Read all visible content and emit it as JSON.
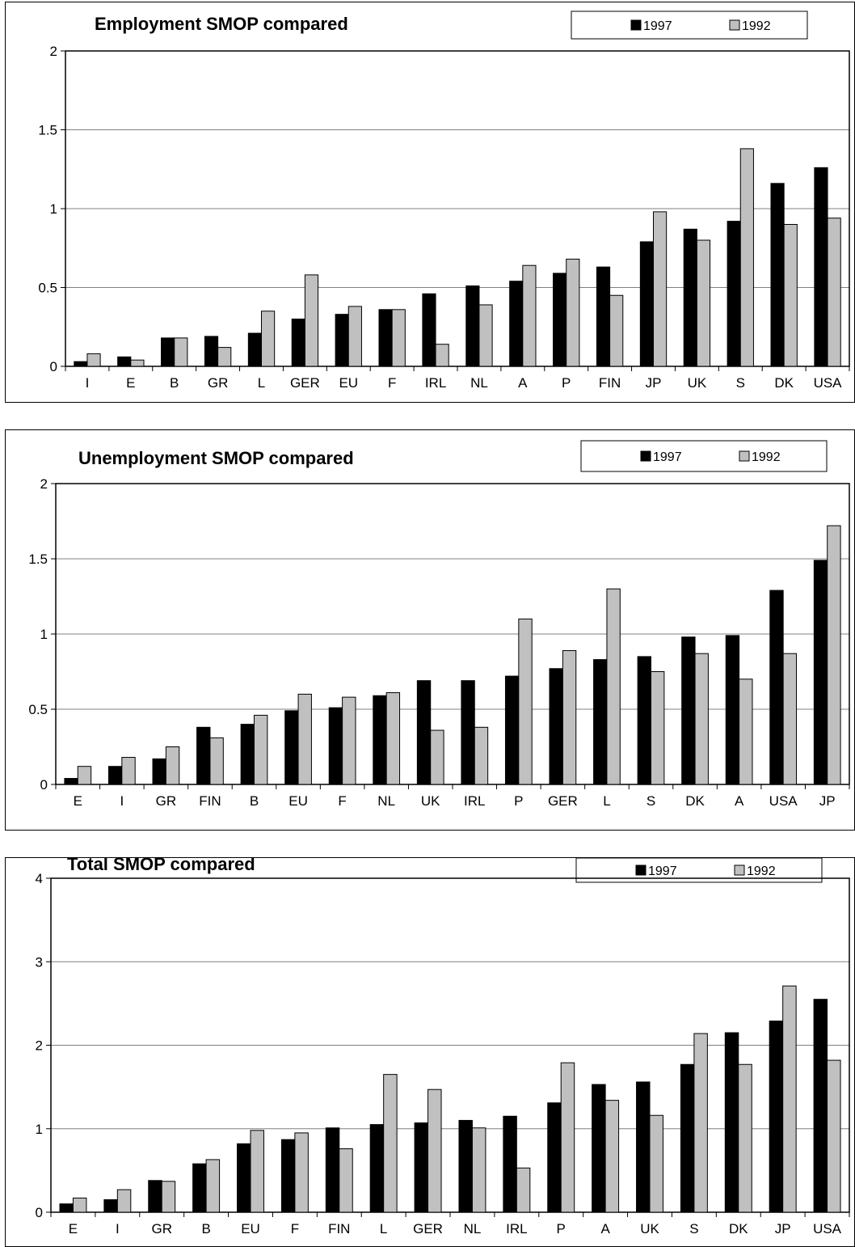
{
  "colors": {
    "series_1997": "#000000",
    "series_1992": "#c0c0c0",
    "gridline": "#808080"
  },
  "chart_data": [
    {
      "type": "bar",
      "title": "Employment SMOP compared",
      "xlabel": "",
      "ylabel": "",
      "ylim": [
        0,
        2
      ],
      "yticks": [
        "0",
        "0.5",
        "1",
        "1.5",
        "2"
      ],
      "grid": true,
      "legend_position": "top-right",
      "categories": [
        "I",
        "E",
        "B",
        "GR",
        "L",
        "GER",
        "EU",
        "F",
        "IRL",
        "NL",
        "A",
        "P",
        "FIN",
        "JP",
        "UK",
        "S",
        "DK",
        "USA"
      ],
      "series": [
        {
          "name": "1997",
          "values": [
            0.03,
            0.06,
            0.18,
            0.19,
            0.21,
            0.3,
            0.33,
            0.36,
            0.46,
            0.51,
            0.54,
            0.59,
            0.63,
            0.79,
            0.87,
            0.92,
            1.16,
            1.26
          ]
        },
        {
          "name": "1992",
          "values": [
            0.08,
            0.04,
            0.18,
            0.12,
            0.35,
            0.58,
            0.38,
            0.36,
            0.14,
            0.39,
            0.64,
            0.68,
            0.45,
            0.98,
            0.8,
            1.38,
            0.9,
            0.94
          ]
        }
      ]
    },
    {
      "type": "bar",
      "title": "Unemployment SMOP compared",
      "xlabel": "",
      "ylabel": "",
      "ylim": [
        0,
        2
      ],
      "yticks": [
        "0",
        "0.5",
        "1",
        "1.5",
        "2"
      ],
      "grid": true,
      "legend_position": "top-right",
      "categories": [
        "E",
        "I",
        "GR",
        "FIN",
        "B",
        "EU",
        "F",
        "NL",
        "UK",
        "IRL",
        "P",
        "GER",
        "L",
        "S",
        "DK",
        "A",
        "USA",
        "JP"
      ],
      "series": [
        {
          "name": "1997",
          "values": [
            0.04,
            0.12,
            0.17,
            0.38,
            0.4,
            0.49,
            0.51,
            0.59,
            0.69,
            0.69,
            0.72,
            0.77,
            0.83,
            0.85,
            0.98,
            0.99,
            1.29,
            1.49
          ]
        },
        {
          "name": "1992",
          "values": [
            0.12,
            0.18,
            0.25,
            0.31,
            0.46,
            0.6,
            0.58,
            0.61,
            0.36,
            0.38,
            1.1,
            0.89,
            1.3,
            0.75,
            0.87,
            0.7,
            0.87,
            1.72
          ]
        }
      ]
    },
    {
      "type": "bar",
      "title": "Total SMOP compared",
      "xlabel": "",
      "ylabel": "",
      "ylim": [
        0,
        4
      ],
      "yticks": [
        "0",
        "1",
        "2",
        "3",
        "4"
      ],
      "grid": true,
      "legend_position": "top-right",
      "categories": [
        "E",
        "I",
        "GR",
        "B",
        "EU",
        "F",
        "FIN",
        "L",
        "GER",
        "NL",
        "IRL",
        "P",
        "A",
        "UK",
        "S",
        "DK",
        "JP",
        "USA"
      ],
      "series": [
        {
          "name": "1997",
          "values": [
            0.1,
            0.15,
            0.38,
            0.58,
            0.82,
            0.87,
            1.01,
            1.05,
            1.07,
            1.1,
            1.15,
            1.31,
            1.53,
            1.56,
            1.77,
            2.15,
            2.29,
            2.55
          ]
        },
        {
          "name": "1992",
          "values": [
            0.17,
            0.27,
            0.37,
            0.63,
            0.98,
            0.95,
            0.76,
            1.65,
            1.47,
            1.01,
            0.53,
            1.79,
            1.34,
            1.16,
            2.14,
            1.77,
            2.71,
            1.82
          ]
        }
      ]
    }
  ]
}
